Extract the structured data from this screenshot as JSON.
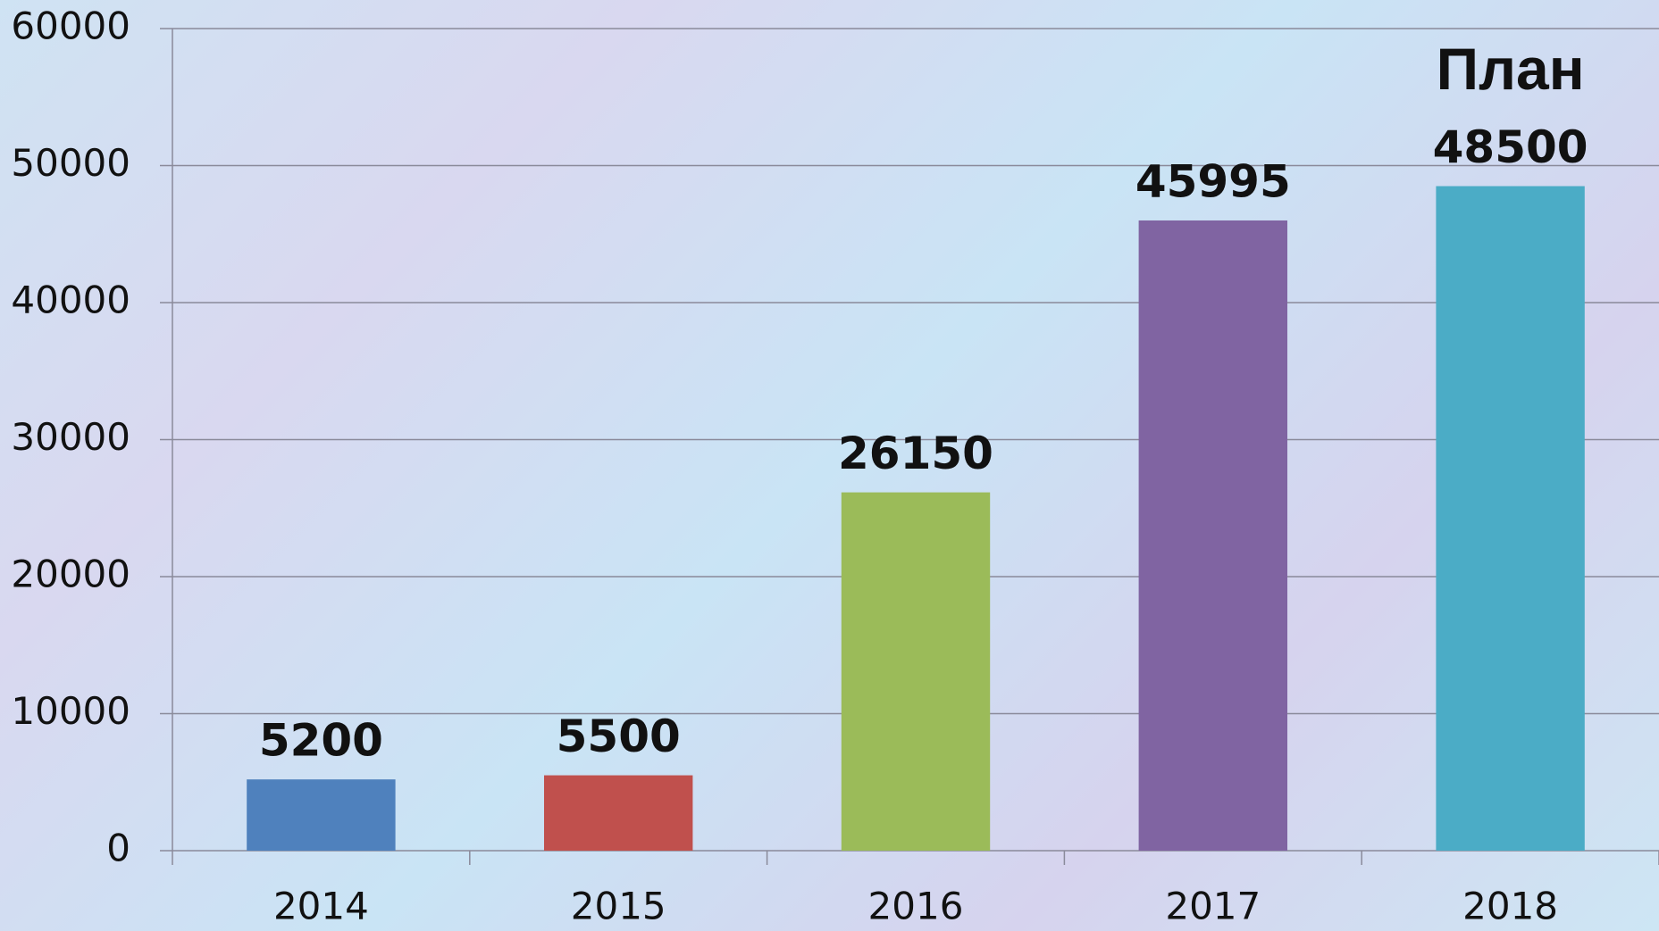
{
  "chart_data": {
    "type": "bar",
    "categories": [
      "2014",
      "2015",
      "2016",
      "2017",
      "2018"
    ],
    "values": [
      5200,
      5500,
      26150,
      45995,
      48500
    ],
    "colors": [
      "#4f81bd",
      "#c0504d",
      "#9bbb59",
      "#8064a2",
      "#4bacc6"
    ],
    "annotation": "План",
    "ylim": [
      0,
      60000
    ],
    "yticks": [
      0,
      10000,
      20000,
      30000,
      40000,
      50000,
      60000
    ],
    "grid": true
  }
}
